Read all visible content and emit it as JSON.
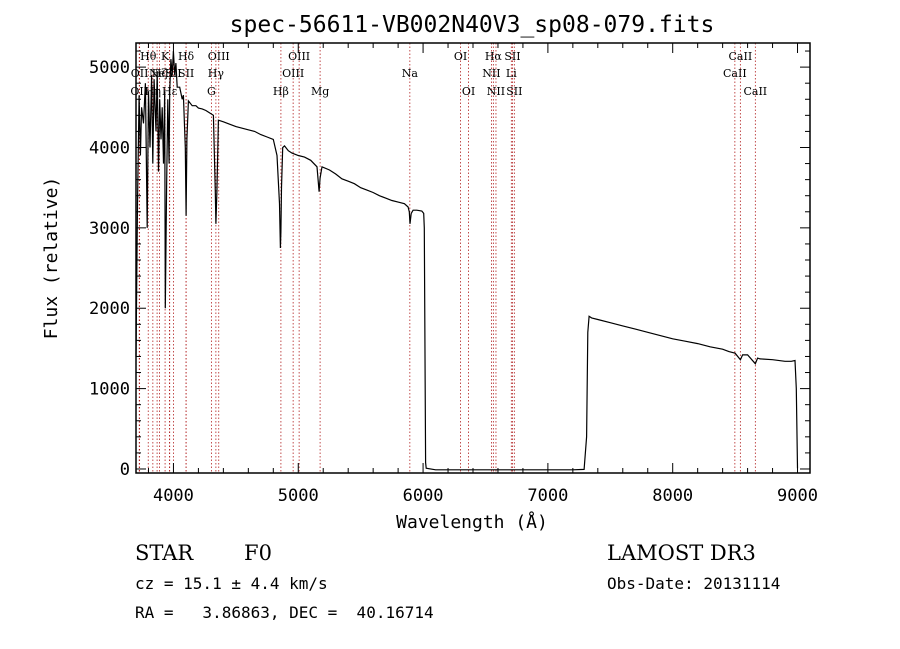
{
  "chart_data": {
    "type": "line",
    "title": "spec-56611-VB002N40V3_sp08-079.fits",
    "xlabel": "Wavelength (Å)",
    "ylabel": "Flux (relative)",
    "xlim": [
      3700,
      9100
    ],
    "ylim": [
      -50,
      5300
    ],
    "xticks": [
      4000,
      5000,
      6000,
      7000,
      8000,
      9000
    ],
    "yticks": [
      0,
      1000,
      2000,
      3000,
      4000,
      5000
    ],
    "colors": {
      "spectrum": "#000000",
      "line_marker": "#b22222"
    },
    "series": [
      {
        "name": "flux",
        "x": [
          3700,
          3712,
          3725,
          3735,
          3745,
          3760,
          3775,
          3790,
          3800,
          3812,
          3825,
          3835,
          3845,
          3860,
          3870,
          3880,
          3890,
          3900,
          3910,
          3920,
          3930,
          3935,
          3945,
          3955,
          3965,
          3970,
          3980,
          3990,
          4000,
          4010,
          4020,
          4030,
          4050,
          4070,
          4080,
          4095,
          4101,
          4108,
          4120,
          4150,
          4180,
          4200,
          4230,
          4260,
          4290,
          4320,
          4335,
          4340,
          4348,
          4360,
          4400,
          4450,
          4500,
          4550,
          4600,
          4650,
          4700,
          4750,
          4800,
          4830,
          4850,
          4857,
          4861,
          4866,
          4875,
          4890,
          4920,
          4950,
          5000,
          5050,
          5100,
          5150,
          5167,
          5175,
          5190,
          5250,
          5300,
          5350,
          5400,
          5450,
          5500,
          5550,
          5600,
          5650,
          5700,
          5750,
          5800,
          5850,
          5880,
          5890,
          5895,
          5905,
          5920,
          5950,
          5990,
          6005,
          6010,
          6020,
          6025,
          6100,
          7200,
          7290,
          7310,
          7320,
          7330,
          7350,
          7400,
          7500,
          7600,
          7700,
          7800,
          7900,
          8000,
          8100,
          8200,
          8300,
          8400,
          8450,
          8500,
          8542,
          8560,
          8600,
          8662,
          8680,
          8700,
          8800,
          8900,
          8950,
          8980,
          8990,
          9000
        ],
        "y": [
          1400,
          3300,
          4650,
          3900,
          4500,
          4300,
          4800,
          3000,
          4700,
          4000,
          4900,
          3800,
          4850,
          4200,
          4950,
          3700,
          4600,
          4100,
          4500,
          3800,
          4700,
          2000,
          3500,
          4600,
          3800,
          4700,
          5100,
          4900,
          5200,
          4900,
          5050,
          4750,
          4750,
          4600,
          4650,
          4000,
          3150,
          4100,
          4580,
          4520,
          4520,
          4490,
          4480,
          4460,
          4430,
          4400,
          3450,
          3050,
          3450,
          4340,
          4320,
          4290,
          4260,
          4240,
          4220,
          4200,
          4160,
          4130,
          4100,
          3900,
          3300,
          2750,
          2950,
          3500,
          4000,
          4020,
          3960,
          3930,
          3900,
          3880,
          3840,
          3760,
          3450,
          3620,
          3760,
          3720,
          3670,
          3610,
          3580,
          3550,
          3500,
          3470,
          3440,
          3400,
          3370,
          3340,
          3320,
          3300,
          3260,
          3200,
          3050,
          3180,
          3220,
          3220,
          3210,
          3180,
          3000,
          80,
          10,
          -10,
          -10,
          -5,
          400,
          1700,
          1900,
          1880,
          1860,
          1820,
          1780,
          1740,
          1700,
          1660,
          1620,
          1590,
          1560,
          1520,
          1490,
          1460,
          1440,
          1360,
          1420,
          1420,
          1310,
          1380,
          1370,
          1360,
          1340,
          1340,
          1350,
          1000,
          10
        ]
      }
    ],
    "lines": [
      {
        "x": 3726,
        "label": "OII",
        "row": 3
      },
      {
        "x": 3729,
        "label": "OII",
        "row": 2
      },
      {
        "x": 3798,
        "label": "Hθ",
        "row": 1
      },
      {
        "x": 3835,
        "label": "Hη",
        "row": 3
      },
      {
        "x": 3869,
        "label": "Ne",
        "row": 2
      },
      {
        "x": 3889,
        "label": "Hζ",
        "row": 2
      },
      {
        "x": 3933,
        "label": "K",
        "row": 1
      },
      {
        "x": 3968,
        "label": "H",
        "row": 2
      },
      {
        "x": 3970,
        "label": "Hε",
        "row": 3
      },
      {
        "x": 4000,
        "label": "SII",
        "row": 2
      },
      {
        "x": 4101,
        "label": "Hδ",
        "row": 1
      },
      {
        "x": 4102,
        "label": "SII",
        "row": 2
      },
      {
        "x": 4304,
        "label": "G",
        "row": 3
      },
      {
        "x": 4340,
        "label": "Hγ",
        "row": 2
      },
      {
        "x": 4363,
        "label": "OIII",
        "row": 1
      },
      {
        "x": 4861,
        "label": "Hβ",
        "row": 3
      },
      {
        "x": 4959,
        "label": "OIII",
        "row": 2
      },
      {
        "x": 5007,
        "label": "OIII",
        "row": 1
      },
      {
        "x": 5175,
        "label": "Mg",
        "row": 3
      },
      {
        "x": 5894,
        "label": "Na",
        "row": 2
      },
      {
        "x": 6300,
        "label": "OI",
        "row": 1
      },
      {
        "x": 6364,
        "label": "OI",
        "row": 3
      },
      {
        "x": 6548,
        "label": "NII",
        "row": 2
      },
      {
        "x": 6563,
        "label": "Hα",
        "row": 1
      },
      {
        "x": 6584,
        "label": "NII",
        "row": 3
      },
      {
        "x": 6707,
        "label": "Li",
        "row": 2
      },
      {
        "x": 6716,
        "label": "SII",
        "row": 1
      },
      {
        "x": 6731,
        "label": "SII",
        "row": 3
      },
      {
        "x": 8498,
        "label": "CaII",
        "row": 2
      },
      {
        "x": 8542,
        "label": "CaII",
        "row": 1
      },
      {
        "x": 8662,
        "label": "CaII",
        "row": 3
      }
    ]
  },
  "info": {
    "class_label": "STAR",
    "subclass": "F0",
    "survey": "LAMOST DR3",
    "redshift_line": "cz = 15.1 ± 4.4 km/s",
    "obs_date": "Obs-Date: 20131114",
    "coords": "RA =   3.86863, DEC =  40.16714"
  }
}
